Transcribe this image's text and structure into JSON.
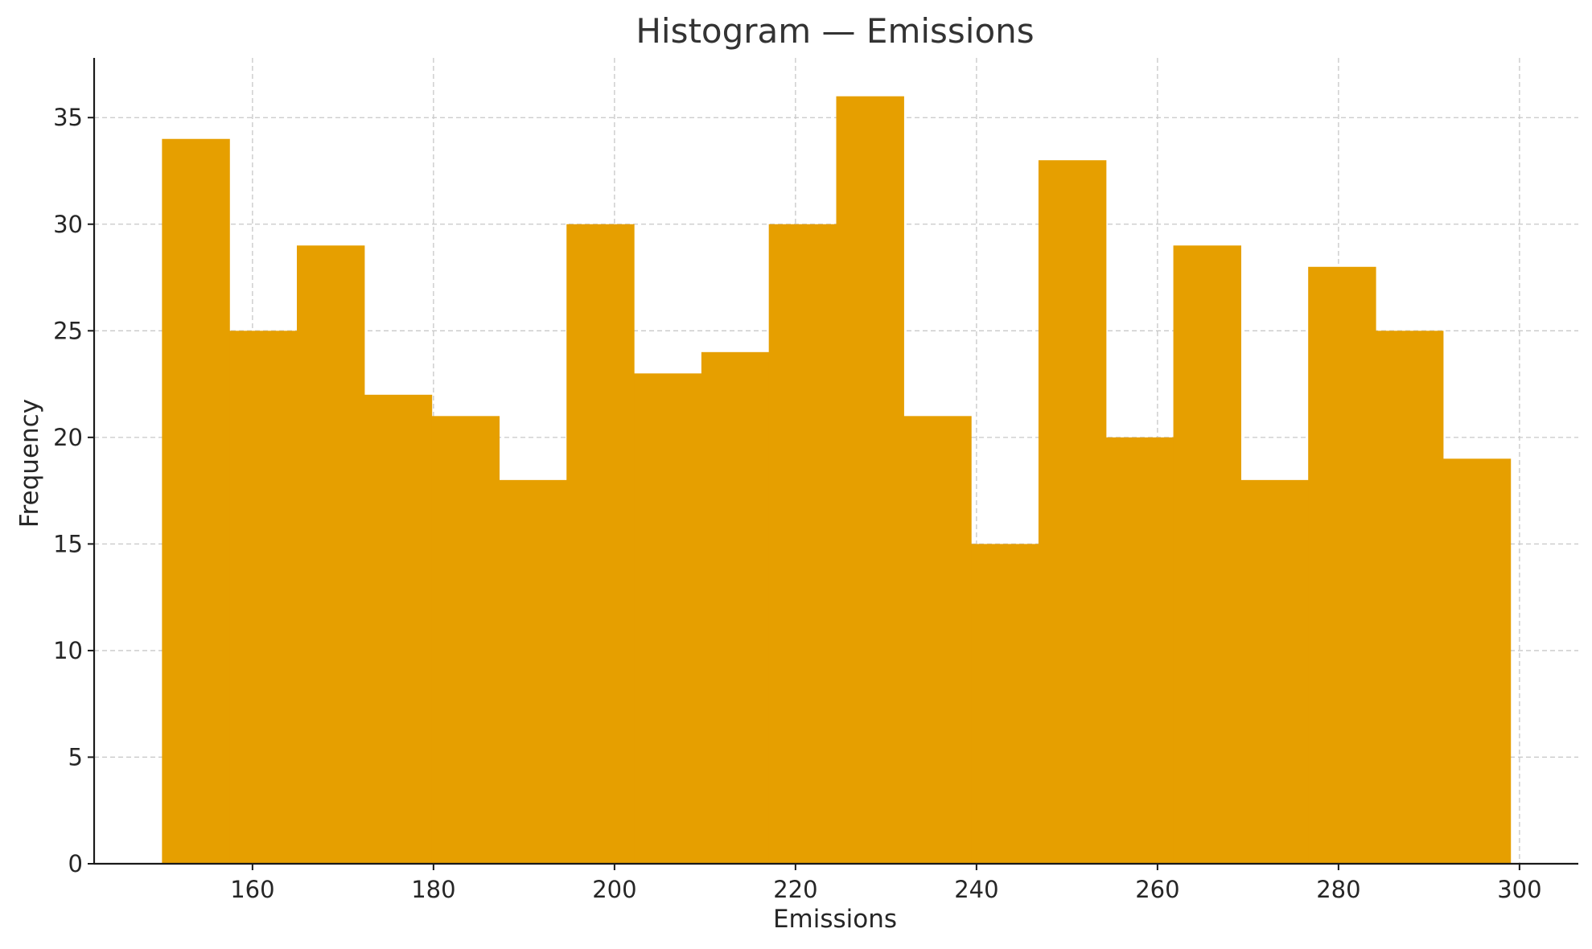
{
  "chart_data": {
    "type": "bar",
    "title": "Histogram — Emissions",
    "xlabel": "Emissions",
    "ylabel": "Frequency",
    "bin_edges": [
      150,
      157.45,
      164.9,
      172.35,
      179.8,
      187.25,
      194.7,
      202.15,
      209.6,
      217.05,
      224.5,
      231.95,
      239.4,
      246.85,
      254.3,
      261.75,
      269.2,
      276.65,
      284.1,
      291.55,
      299
    ],
    "values": [
      34,
      25,
      29,
      22,
      21,
      18,
      30,
      23,
      24,
      30,
      36,
      21,
      15,
      33,
      20,
      29,
      18,
      28,
      25,
      19
    ],
    "xlim": [
      142.5,
      306.5
    ],
    "ylim": [
      0,
      37.8
    ],
    "x_ticks": [
      160,
      180,
      200,
      220,
      240,
      260,
      280,
      300
    ],
    "y_ticks": [
      0,
      5,
      10,
      15,
      20,
      25,
      30,
      35
    ],
    "bar_color": "#E69F00",
    "grid": true
  }
}
